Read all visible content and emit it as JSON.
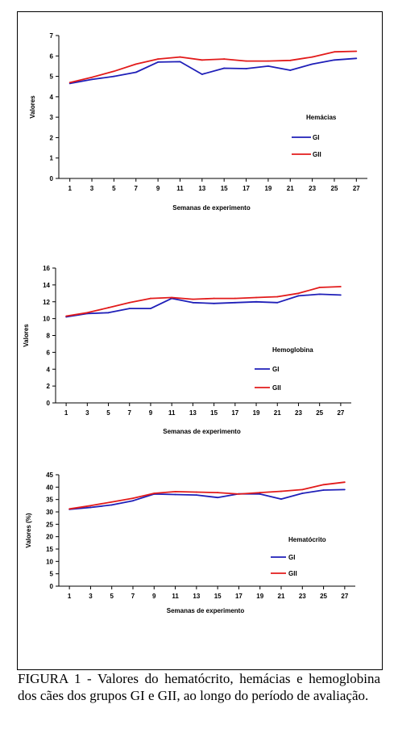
{
  "caption": "FIGURA 1 - Valores do hematócrito, hemácias e hemoglobina dos cães dos grupos GI e GII, ao longo do período de avaliação.",
  "colors": {
    "GI": "#1f1fb8",
    "GII": "#e21b1b"
  },
  "chart_data": [
    {
      "type": "line",
      "title": "Hemácias",
      "xlabel": "Semanas de experimento",
      "ylabel": "Valores",
      "x": [
        1,
        3,
        5,
        7,
        9,
        11,
        13,
        15,
        17,
        19,
        21,
        23,
        25,
        27
      ],
      "xticks": [
        "1",
        "3",
        "5",
        "7",
        "9",
        "11",
        "13",
        "15",
        "17",
        "19",
        "21",
        "23",
        "25",
        "27"
      ],
      "ylim": [
        0,
        7
      ],
      "yticks": [
        "0",
        "1",
        "2",
        "3",
        "4",
        "5",
        "6",
        "7"
      ],
      "legend_position": "right",
      "series": [
        {
          "name": "GI",
          "color": "#1f1fb8",
          "values": [
            4.65,
            4.85,
            5.0,
            5.2,
            5.7,
            5.72,
            5.1,
            5.4,
            5.38,
            5.5,
            5.3,
            5.6,
            5.8,
            5.88
          ]
        },
        {
          "name": "GII",
          "color": "#e21b1b",
          "values": [
            4.7,
            4.95,
            5.25,
            5.6,
            5.85,
            5.95,
            5.8,
            5.85,
            5.75,
            5.75,
            5.78,
            5.95,
            6.2,
            6.23
          ]
        }
      ]
    },
    {
      "type": "line",
      "title": "Hemoglobina",
      "xlabel": "Semanas de experimento",
      "ylabel": "Valores",
      "x": [
        1,
        3,
        5,
        7,
        9,
        11,
        13,
        15,
        17,
        19,
        21,
        23,
        25,
        27
      ],
      "xticks": [
        "1",
        "3",
        "5",
        "7",
        "9",
        "11",
        "13",
        "15",
        "17",
        "19",
        "21",
        "23",
        "25",
        "27"
      ],
      "ylim": [
        0,
        16
      ],
      "yticks": [
        "0",
        "2",
        "4",
        "6",
        "8",
        "10",
        "12",
        "14",
        "16"
      ],
      "legend_position": "right",
      "series": [
        {
          "name": "GI",
          "color": "#1f1fb8",
          "values": [
            10.2,
            10.6,
            10.7,
            11.2,
            11.2,
            12.4,
            11.9,
            11.8,
            11.9,
            12.0,
            11.9,
            12.7,
            12.9,
            12.8
          ]
        },
        {
          "name": "GII",
          "color": "#e21b1b",
          "values": [
            10.3,
            10.7,
            11.3,
            11.9,
            12.4,
            12.5,
            12.3,
            12.4,
            12.4,
            12.5,
            12.6,
            13.0,
            13.7,
            13.8
          ]
        }
      ]
    },
    {
      "type": "line",
      "title": "Hematócrito",
      "xlabel": "Semanas de experimento",
      "ylabel": "Valores (%)",
      "x": [
        1,
        3,
        5,
        7,
        9,
        11,
        13,
        15,
        17,
        19,
        21,
        23,
        25,
        27
      ],
      "xticks": [
        "1",
        "3",
        "5",
        "7",
        "9",
        "11",
        "13",
        "15",
        "17",
        "19",
        "21",
        "23",
        "25",
        "27"
      ],
      "ylim": [
        0,
        45
      ],
      "yticks": [
        "0",
        "5",
        "10",
        "15",
        "20",
        "25",
        "30",
        "35",
        "40",
        "45"
      ],
      "legend_position": "right",
      "series": [
        {
          "name": "GI",
          "color": "#1f1fb8",
          "values": [
            31.0,
            31.8,
            32.8,
            34.5,
            37.2,
            37.0,
            36.8,
            35.8,
            37.3,
            37.2,
            35.2,
            37.5,
            38.8,
            39.0
          ]
        },
        {
          "name": "GII",
          "color": "#e21b1b",
          "values": [
            31.2,
            32.5,
            34.0,
            35.5,
            37.5,
            38.2,
            38.0,
            37.8,
            37.2,
            37.8,
            38.3,
            39.0,
            41.0,
            42.0
          ]
        }
      ]
    }
  ]
}
